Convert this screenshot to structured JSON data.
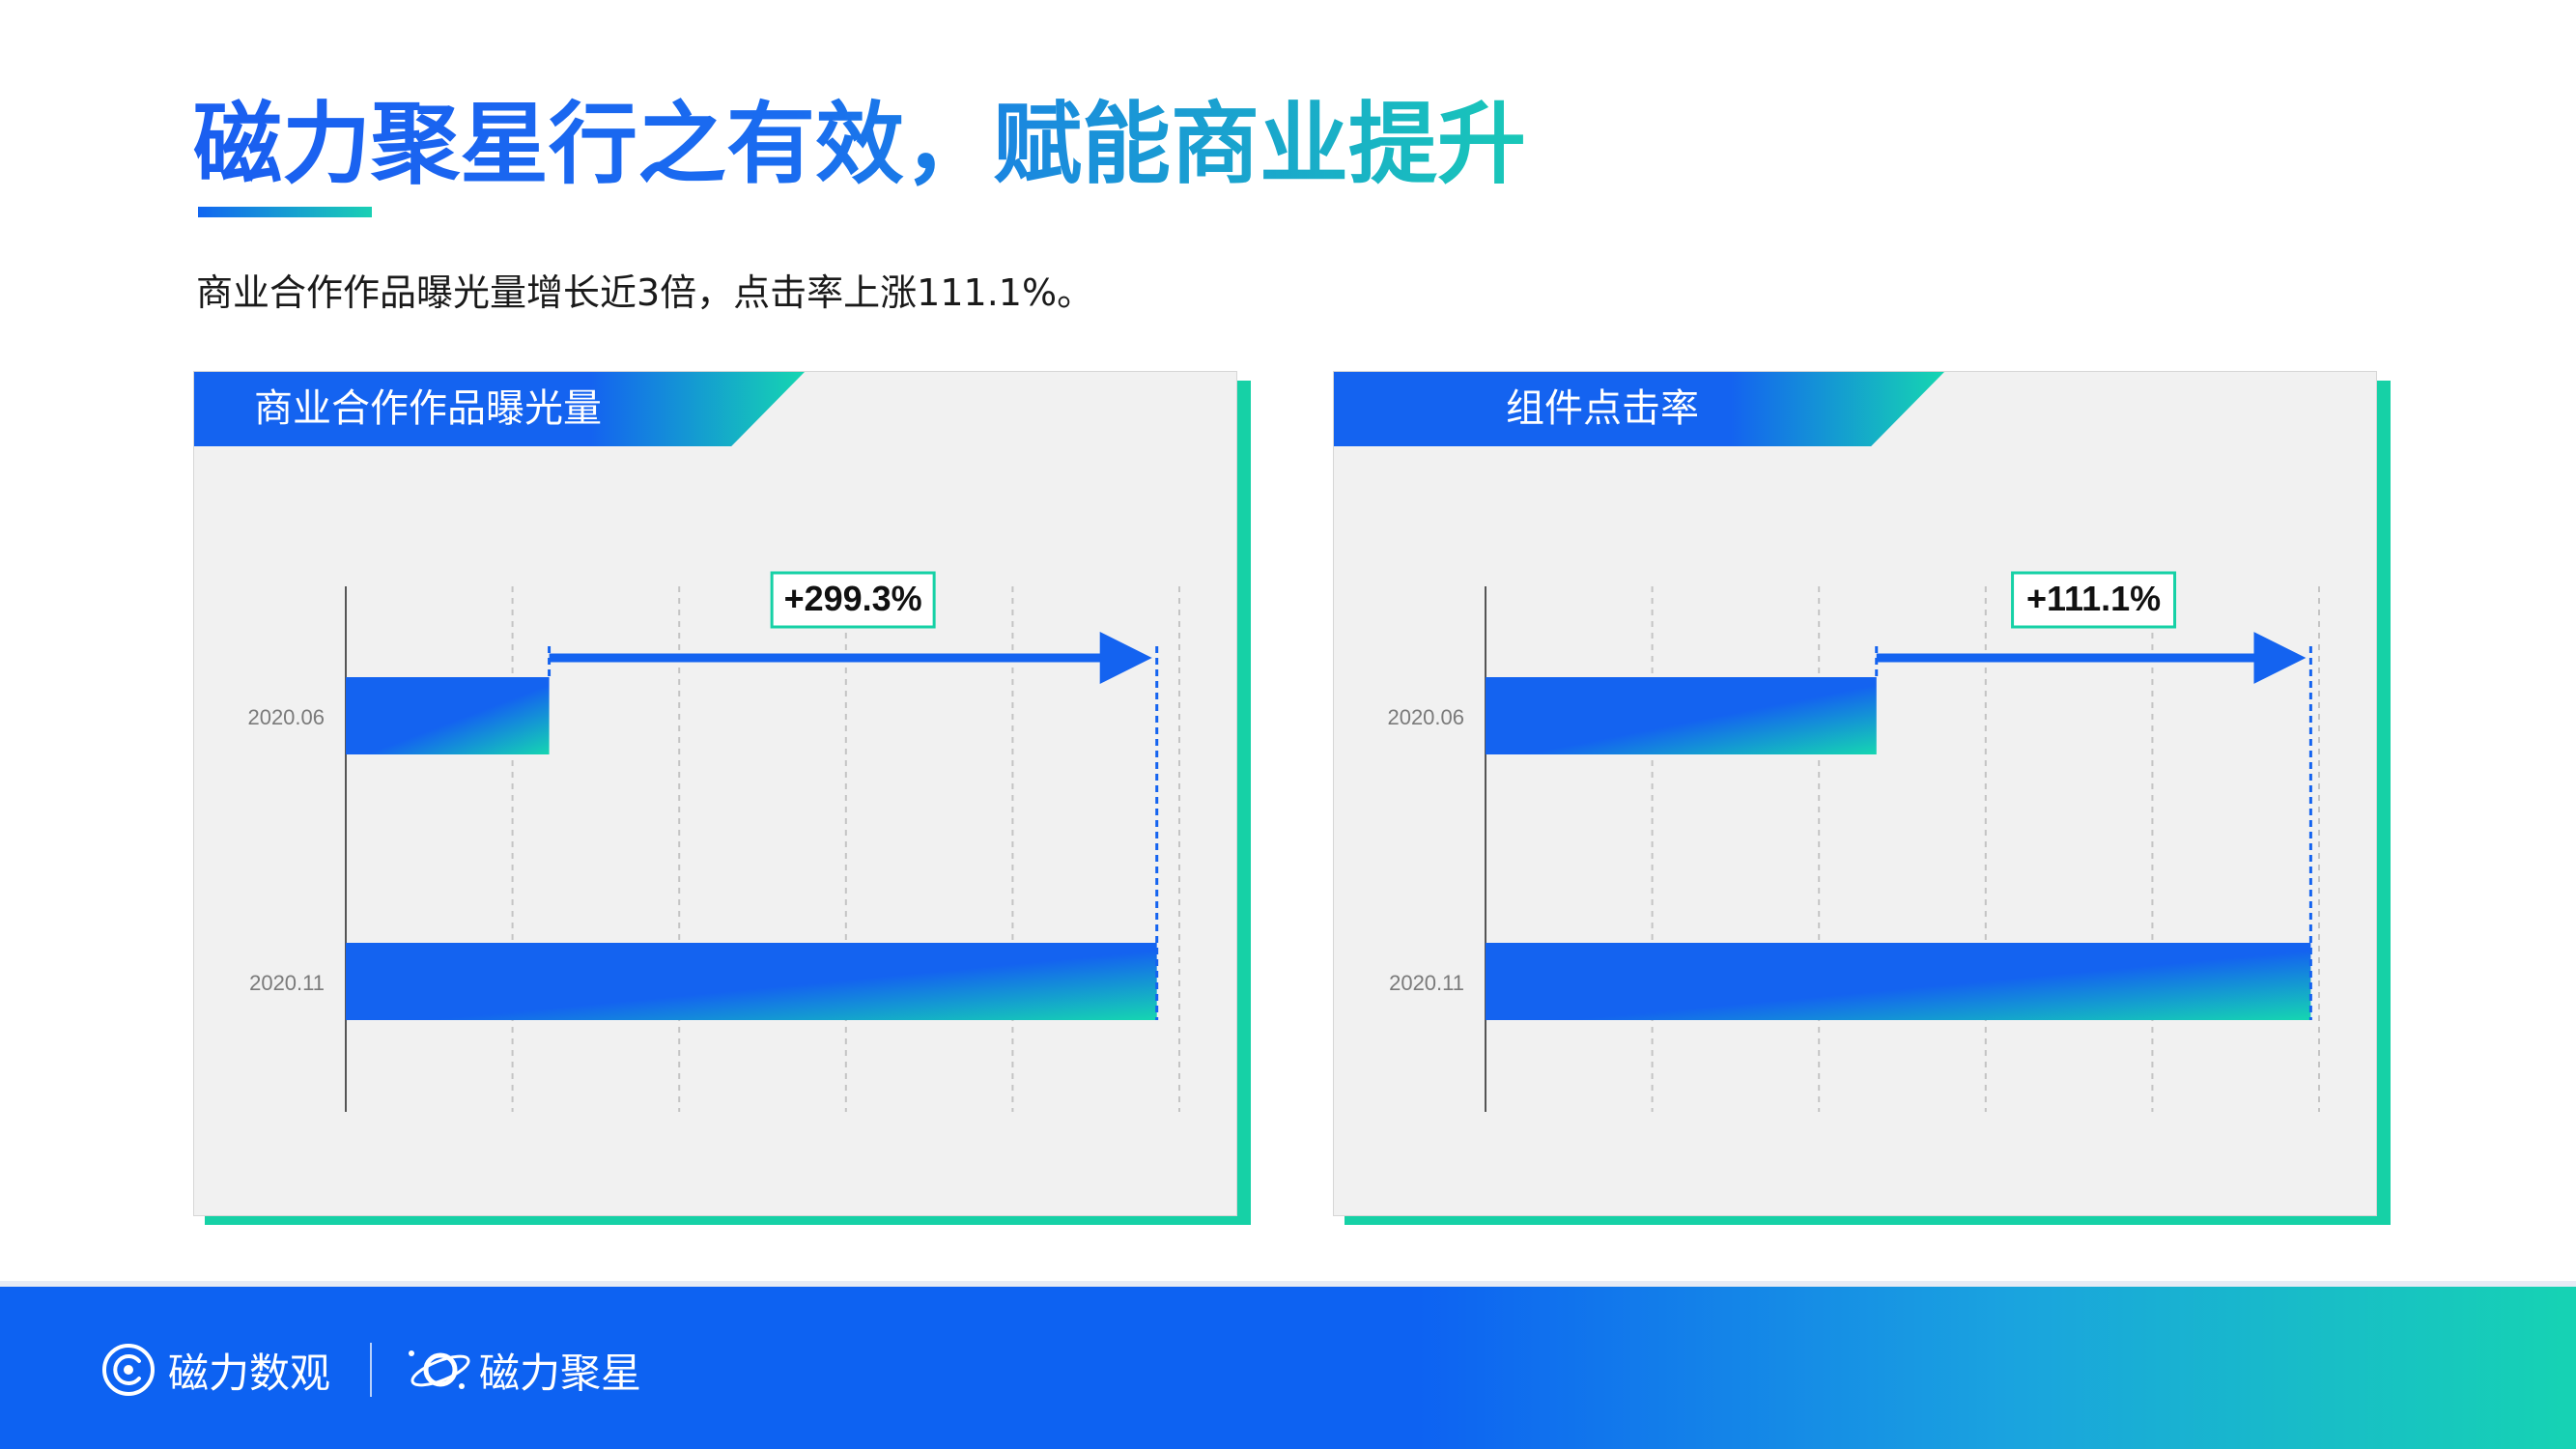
{
  "page": {
    "title": "磁力聚星行之有效，赋能商业提升",
    "subtitle": "商业合作作品曝光量增长近3倍，点击率上涨111.1%。"
  },
  "colors": {
    "primary_blue": "#1463f0",
    "accent_green": "#16d1a6",
    "card_bg": "#f1f1f1"
  },
  "chart_data": [
    {
      "type": "bar",
      "orientation": "horizontal",
      "title": "商业合作作品曝光量",
      "categories": [
        "2020.06",
        "2020.11"
      ],
      "values": [
        24.4,
        97.3
      ],
      "xlim": [
        0,
        100
      ],
      "grid": true,
      "annotation": "+299.3%"
    },
    {
      "type": "bar",
      "orientation": "horizontal",
      "title": "组件点击率",
      "categories": [
        "2020.06",
        "2020.11"
      ],
      "values": [
        46.9,
        99.0
      ],
      "xlim": [
        0,
        100
      ],
      "grid": true,
      "annotation": "+111.1%"
    }
  ],
  "footer": {
    "brand_1": "磁力数观",
    "brand_2": "磁力聚星",
    "brand_1_icon": "concentric-circles-icon",
    "brand_2_icon": "planet-ring-icon"
  }
}
